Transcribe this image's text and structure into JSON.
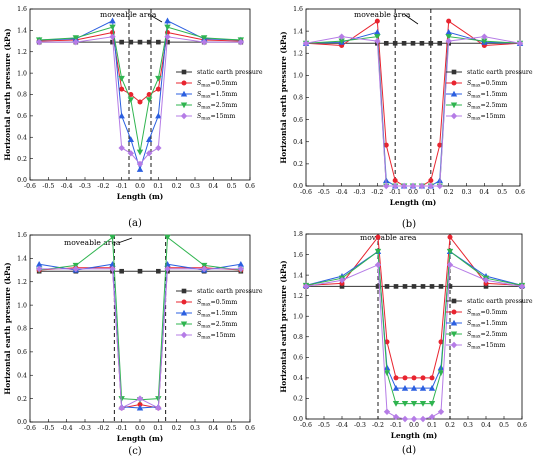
{
  "colors": {
    "static": "#333333",
    "s05": "#e8242f",
    "s15": "#2b5fe0",
    "s25": "#2fb44f",
    "s15mm": "#b57ce6"
  },
  "legend": [
    {
      "key": "static",
      "marker": "square",
      "text": "static earth pressure",
      "sub": "",
      "post": ""
    },
    {
      "key": "s05",
      "marker": "circle",
      "text": "S",
      "sub": "max",
      "post": "=0.5mm"
    },
    {
      "key": "s15",
      "marker": "triangle-up",
      "text": "S",
      "sub": "max",
      "post": "=1.5mm"
    },
    {
      "key": "s25",
      "marker": "triangle-down",
      "text": "S",
      "sub": "max",
      "post": "=2.5mm"
    },
    {
      "key": "s15mm",
      "marker": "diamond",
      "text": "S",
      "sub": "max",
      "post": "=15mm"
    }
  ],
  "chart_data": [
    {
      "panel": "(a)",
      "type": "line",
      "xlabel": "Length (m)",
      "ylabel": "Horizontal earth pressure (kPa)",
      "xlim": [
        -0.6,
        0.6
      ],
      "ylim": [
        0,
        1.6
      ],
      "xticks": [
        "-0.6",
        "-0.5",
        "-0.4",
        "-0.3",
        "-0.2",
        "-0.1",
        "0.0",
        "0.1",
        "0.2",
        "0.3",
        "0.4",
        "0.5",
        "0.6"
      ],
      "yticks": [
        "0.0",
        "0.2",
        "0.4",
        "0.6",
        "0.8",
        "1.0",
        "1.2",
        "1.4",
        "1.6"
      ],
      "annotation": "moveable area",
      "moveable_bounds": [
        -0.06,
        0.06
      ],
      "series": [
        {
          "key": "static",
          "x": [
            -0.55,
            -0.35,
            -0.15,
            -0.1,
            -0.05,
            0,
            0.05,
            0.1,
            0.15,
            0.35,
            0.55
          ],
          "y": [
            1.29,
            1.29,
            1.29,
            1.29,
            1.29,
            1.29,
            1.29,
            1.29,
            1.29,
            1.29,
            1.29
          ]
        },
        {
          "key": "s05",
          "x": [
            -0.55,
            -0.35,
            -0.15,
            -0.1,
            -0.05,
            0,
            0.05,
            0.1,
            0.15,
            0.35,
            0.55
          ],
          "y": [
            1.3,
            1.31,
            1.38,
            0.85,
            0.8,
            0.73,
            0.8,
            0.85,
            1.38,
            1.31,
            1.3
          ]
        },
        {
          "key": "s15",
          "x": [
            -0.55,
            -0.35,
            -0.15,
            -0.1,
            -0.05,
            0,
            0.05,
            0.1,
            0.15,
            0.35,
            0.55
          ],
          "y": [
            1.31,
            1.32,
            1.49,
            0.6,
            0.38,
            0.1,
            0.38,
            0.6,
            1.49,
            1.32,
            1.31
          ]
        },
        {
          "key": "s25",
          "x": [
            -0.55,
            -0.35,
            -0.15,
            -0.1,
            -0.05,
            0,
            0.05,
            0.1,
            0.15,
            0.35,
            0.55
          ],
          "y": [
            1.31,
            1.33,
            1.43,
            0.95,
            0.75,
            0.26,
            0.75,
            0.95,
            1.43,
            1.33,
            1.31
          ]
        },
        {
          "key": "s15mm",
          "x": [
            -0.55,
            -0.35,
            -0.15,
            -0.1,
            -0.05,
            0,
            0.05,
            0.1,
            0.15,
            0.35,
            0.55
          ],
          "y": [
            1.29,
            1.29,
            1.34,
            0.3,
            0.25,
            0.15,
            0.25,
            0.3,
            1.34,
            1.29,
            1.29
          ]
        }
      ]
    },
    {
      "panel": "(b)",
      "type": "line",
      "xlabel": "Length (m)",
      "ylabel": "Horizontal earth pressure (kPa)",
      "xlim": [
        -0.6,
        0.6
      ],
      "ylim": [
        0,
        1.6
      ],
      "xticks": [
        "-0.6",
        "-0.5",
        "-0.4",
        "-0.3",
        "-0.2",
        "-0.1",
        "0.0",
        "0.1",
        "0.2",
        "0.3",
        "0.4",
        "0.5",
        "0.6"
      ],
      "yticks": [
        "0.0",
        "0.2",
        "0.4",
        "0.6",
        "0.8",
        "1.0",
        "1.2",
        "1.4",
        "1.6"
      ],
      "annotation": "moveable area",
      "moveable_bounds": [
        -0.1,
        0.1
      ],
      "series": [
        {
          "key": "static",
          "x": [
            -0.6,
            -0.4,
            -0.2,
            -0.15,
            -0.1,
            -0.05,
            0,
            0.05,
            0.1,
            0.15,
            0.2,
            0.4,
            0.6
          ],
          "y": [
            1.29,
            1.29,
            1.29,
            1.29,
            1.29,
            1.29,
            1.29,
            1.29,
            1.29,
            1.29,
            1.29,
            1.29,
            1.29
          ]
        },
        {
          "key": "s05",
          "x": [
            -0.6,
            -0.4,
            -0.2,
            -0.15,
            -0.1,
            -0.05,
            0,
            0.05,
            0.1,
            0.15,
            0.2,
            0.4,
            0.6
          ],
          "y": [
            1.29,
            1.27,
            1.49,
            0.37,
            0.05,
            0.0,
            0.0,
            0.0,
            0.05,
            0.37,
            1.49,
            1.27,
            1.29
          ]
        },
        {
          "key": "s15",
          "x": [
            -0.6,
            -0.4,
            -0.2,
            -0.15,
            -0.1,
            -0.05,
            0,
            0.05,
            0.1,
            0.15,
            0.2,
            0.4,
            0.6
          ],
          "y": [
            1.29,
            1.3,
            1.39,
            0.05,
            0.0,
            0.0,
            0.0,
            0.0,
            0.0,
            0.05,
            1.39,
            1.3,
            1.29
          ]
        },
        {
          "key": "s25",
          "x": [
            -0.6,
            -0.4,
            -0.2,
            -0.15,
            -0.1,
            -0.05,
            0,
            0.05,
            0.1,
            0.15,
            0.2,
            0.4,
            0.6
          ],
          "y": [
            1.29,
            1.31,
            1.35,
            0.0,
            0.0,
            0.0,
            0.0,
            0.0,
            0.0,
            0.0,
            1.35,
            1.31,
            1.29
          ]
        },
        {
          "key": "s15mm",
          "x": [
            -0.6,
            -0.4,
            -0.2,
            -0.15,
            -0.1,
            -0.05,
            0,
            0.05,
            0.1,
            0.15,
            0.2,
            0.4,
            0.6
          ],
          "y": [
            1.29,
            1.35,
            1.31,
            0.0,
            0.0,
            0.0,
            0.0,
            0.0,
            0.0,
            0.0,
            1.31,
            1.35,
            1.29
          ]
        }
      ]
    },
    {
      "panel": "(c)",
      "type": "line",
      "xlabel": "Length (m)",
      "ylabel": "Horizontal earth pressure (kPa)",
      "xlim": [
        -0.6,
        0.6
      ],
      "ylim": [
        0,
        1.6
      ],
      "xticks": [
        "-0.6",
        "-0.5",
        "-0.4",
        "-0.3",
        "-0.2",
        "-0.1",
        "0.0",
        "0.1",
        "0.2",
        "0.3",
        "0.4",
        "0.5",
        "0.6"
      ],
      "yticks": [
        "0.0",
        "0.2",
        "0.4",
        "0.6",
        "0.8",
        "1.0",
        "1.2",
        "1.4",
        "1.6"
      ],
      "annotation": "moveable area",
      "moveable_bounds": [
        -0.14,
        0.14
      ],
      "series": [
        {
          "key": "static",
          "x": [
            -0.55,
            -0.35,
            -0.15,
            -0.1,
            0,
            0.1,
            0.15,
            0.35,
            0.55
          ],
          "y": [
            1.29,
            1.29,
            1.29,
            1.29,
            1.29,
            1.29,
            1.29,
            1.29,
            1.29
          ]
        },
        {
          "key": "s05",
          "x": [
            -0.55,
            -0.35,
            -0.15,
            -0.1,
            0,
            0.1,
            0.15,
            0.35,
            0.55
          ],
          "y": [
            1.3,
            1.32,
            1.32,
            0.12,
            0.15,
            0.12,
            1.32,
            1.32,
            1.3
          ]
        },
        {
          "key": "s15",
          "x": [
            -0.55,
            -0.35,
            -0.15,
            -0.1,
            0,
            0.1,
            0.15,
            0.35,
            0.55
          ],
          "y": [
            1.35,
            1.3,
            1.35,
            0.13,
            0.12,
            0.13,
            1.35,
            1.3,
            1.35
          ]
        },
        {
          "key": "s25",
          "x": [
            -0.55,
            -0.35,
            -0.15,
            -0.1,
            0,
            0.1,
            0.15,
            0.35,
            0.55
          ],
          "y": [
            1.3,
            1.34,
            1.58,
            0.2,
            0.19,
            0.2,
            1.58,
            1.34,
            1.3
          ]
        },
        {
          "key": "s15mm",
          "x": [
            -0.55,
            -0.35,
            -0.15,
            -0.1,
            0,
            0.1,
            0.15,
            0.35,
            0.55
          ],
          "y": [
            1.31,
            1.31,
            1.31,
            0.12,
            0.2,
            0.12,
            1.31,
            1.31,
            1.31
          ]
        }
      ]
    },
    {
      "panel": "(d)",
      "type": "line",
      "xlabel": "Length (m)",
      "ylabel": "Horizontal earth pressure (kPa)",
      "xlim": [
        -0.6,
        0.6
      ],
      "ylim": [
        0,
        1.8
      ],
      "xticks": [
        "-0.6",
        "-0.5",
        "-0.4",
        "-0.3",
        "-0.2",
        "-0.1",
        "0.0",
        "0.1",
        "0.2",
        "0.3",
        "0.4",
        "0.5",
        "0.6"
      ],
      "yticks": [
        "0.0",
        "0.2",
        "0.4",
        "0.6",
        "0.8",
        "1.0",
        "1.2",
        "1.4",
        "1.6",
        "1.8"
      ],
      "annotation": "moveable area",
      "moveable_bounds": [
        -0.2,
        0.2
      ],
      "series": [
        {
          "key": "static",
          "x": [
            -0.6,
            -0.4,
            -0.2,
            -0.15,
            -0.1,
            -0.05,
            0,
            0.05,
            0.1,
            0.15,
            0.2,
            0.4,
            0.6
          ],
          "y": [
            1.29,
            1.29,
            1.29,
            1.29,
            1.29,
            1.29,
            1.29,
            1.29,
            1.29,
            1.29,
            1.29,
            1.29,
            1.29
          ]
        },
        {
          "key": "s05",
          "x": [
            -0.6,
            -0.4,
            -0.2,
            -0.15,
            -0.1,
            -0.05,
            0,
            0.05,
            0.1,
            0.15,
            0.2,
            0.4,
            0.6
          ],
          "y": [
            1.3,
            1.32,
            1.77,
            0.75,
            0.4,
            0.4,
            0.4,
            0.4,
            0.4,
            0.75,
            1.77,
            1.32,
            1.3
          ]
        },
        {
          "key": "s15",
          "x": [
            -0.6,
            -0.4,
            -0.2,
            -0.15,
            -0.1,
            -0.05,
            0,
            0.05,
            0.1,
            0.15,
            0.2,
            0.4,
            0.6
          ],
          "y": [
            1.3,
            1.39,
            1.63,
            0.5,
            0.3,
            0.3,
            0.3,
            0.3,
            0.3,
            0.5,
            1.63,
            1.39,
            1.3
          ]
        },
        {
          "key": "s25",
          "x": [
            -0.6,
            -0.4,
            -0.2,
            -0.15,
            -0.1,
            -0.05,
            0,
            0.05,
            0.1,
            0.15,
            0.2,
            0.4,
            0.6
          ],
          "y": [
            1.3,
            1.37,
            1.63,
            0.45,
            0.15,
            0.15,
            0.15,
            0.15,
            0.15,
            0.45,
            1.63,
            1.37,
            1.3
          ]
        },
        {
          "key": "s15mm",
          "x": [
            -0.6,
            -0.4,
            -0.2,
            -0.15,
            -0.1,
            -0.05,
            0,
            0.05,
            0.1,
            0.15,
            0.2,
            0.4,
            0.6
          ],
          "y": [
            1.29,
            1.35,
            1.5,
            0.07,
            0.02,
            0.0,
            0.0,
            0.0,
            0.02,
            0.07,
            1.5,
            1.35,
            1.29
          ]
        }
      ]
    }
  ]
}
